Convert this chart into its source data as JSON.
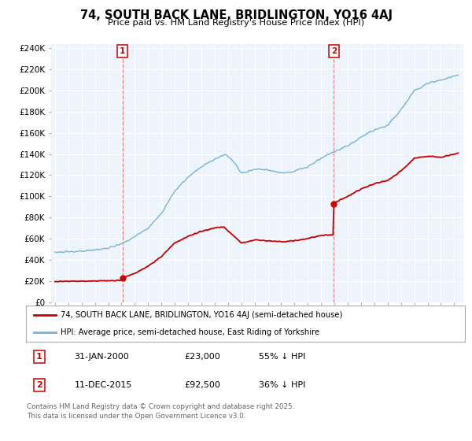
{
  "title": "74, SOUTH BACK LANE, BRIDLINGTON, YO16 4AJ",
  "subtitle": "Price paid vs. HM Land Registry's House Price Index (HPI)",
  "bg_color": "#ffffff",
  "plot_bg_color": "#eef4fb",
  "hpi_color": "#7ab3d4",
  "price_color": "#cc0000",
  "vline_color": "#e88080",
  "marker1_date_x": 2000.08,
  "marker1_y": 23000,
  "marker2_date_x": 2015.95,
  "marker2_y": 92500,
  "vline1_x": 2000.08,
  "vline2_x": 2015.95,
  "legend_line1": "74, SOUTH BACK LANE, BRIDLINGTON, YO16 4AJ (semi-detached house)",
  "legend_line2": "HPI: Average price, semi-detached house, East Riding of Yorkshire",
  "table_row1": [
    "1",
    "31-JAN-2000",
    "£23,000",
    "55% ↓ HPI"
  ],
  "table_row2": [
    "2",
    "11-DEC-2015",
    "£92,500",
    "36% ↓ HPI"
  ],
  "footer": "Contains HM Land Registry data © Crown copyright and database right 2025.\nThis data is licensed under the Open Government Licence v3.0.",
  "ylim": [
    0,
    244000
  ],
  "yticks": [
    0,
    20000,
    40000,
    60000,
    80000,
    100000,
    120000,
    140000,
    160000,
    180000,
    200000,
    220000,
    240000
  ],
  "ytick_labels": [
    "£0",
    "£20K",
    "£40K",
    "£60K",
    "£80K",
    "£100K",
    "£120K",
    "£140K",
    "£160K",
    "£180K",
    "£200K",
    "£220K",
    "£240K"
  ],
  "xmin": 1994.7,
  "xmax": 2025.7
}
